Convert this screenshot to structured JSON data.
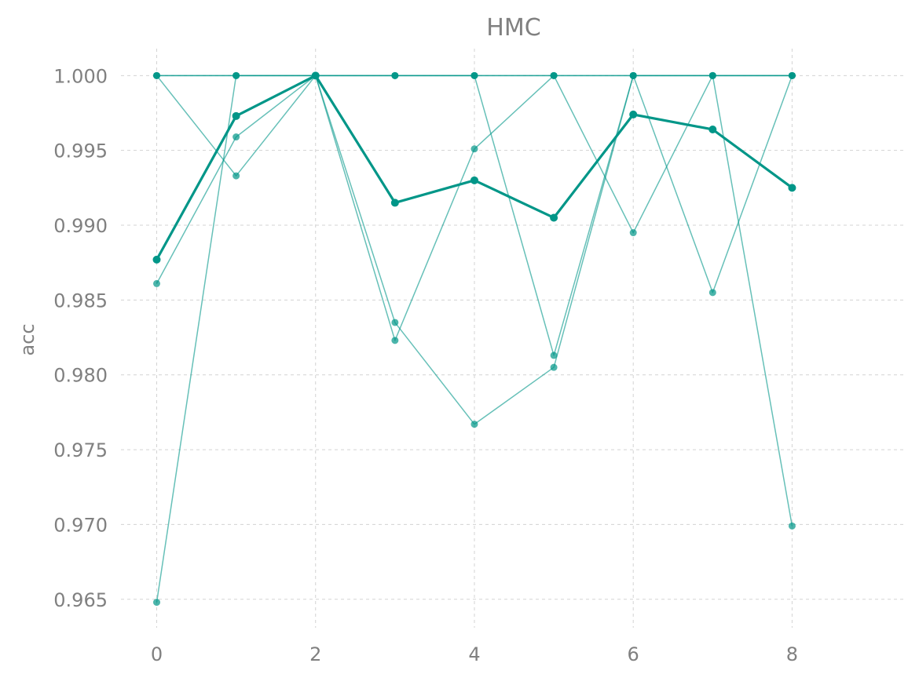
{
  "chart_data": {
    "type": "line",
    "title": "HMC",
    "xlabel": "",
    "ylabel": "acc",
    "xlim": [
      -0.45,
      9.4
    ],
    "ylim": [
      0.9631,
      1.0018
    ],
    "xticks": [
      0,
      2,
      4,
      6,
      8
    ],
    "xtick_labels": [
      "0",
      "2",
      "4",
      "6",
      "8"
    ],
    "yticks": [
      0.965,
      0.97,
      0.975,
      0.98,
      0.985,
      0.99,
      0.995,
      1.0
    ],
    "ytick_labels": [
      "0.965",
      "0.970",
      "0.975",
      "0.980",
      "0.985",
      "0.990",
      "0.995",
      "1.000"
    ],
    "grid": true,
    "color": "#009688",
    "x": [
      0,
      1,
      2,
      3,
      4,
      5,
      6,
      7,
      8
    ],
    "series": [
      {
        "values": [
          1.0,
          0.9933,
          1.0,
          1.0,
          1.0,
          1.0,
          1.0,
          1.0,
          1.0
        ],
        "style": "thin"
      },
      {
        "values": [
          1.0,
          1.0,
          1.0,
          1.0,
          1.0,
          1.0,
          1.0,
          1.0,
          0.9699
        ],
        "style": "thin"
      },
      {
        "values": [
          0.9648,
          1.0,
          1.0,
          0.9835,
          0.9767,
          0.9805,
          1.0,
          1.0,
          1.0
        ],
        "style": "thin"
      },
      {
        "values": [
          0.9861,
          0.9959,
          1.0,
          0.9823,
          0.9951,
          1.0,
          0.9895,
          1.0,
          1.0
        ],
        "style": "thin"
      },
      {
        "values": [
          1.0,
          1.0,
          1.0,
          1.0,
          1.0,
          0.9813,
          1.0,
          0.9855,
          1.0
        ],
        "style": "thin"
      },
      {
        "values": [
          0.9877,
          0.9973,
          1.0,
          0.9915,
          0.993,
          0.9905,
          0.9974,
          0.9964,
          0.9925
        ],
        "style": "mean"
      }
    ]
  }
}
